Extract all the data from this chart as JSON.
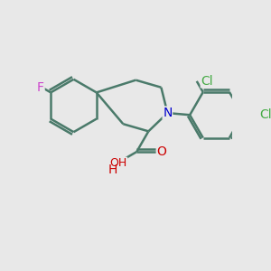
{
  "background_color": "#e8e8e8",
  "bond_color": "#4a7a6a",
  "bond_width": 1.8,
  "atom_colors": {
    "F": "#cc44cc",
    "N": "#0000cc",
    "O": "#cc0000",
    "Cl": "#44aa44",
    "C": "#000000"
  },
  "font_size_atom": 10
}
